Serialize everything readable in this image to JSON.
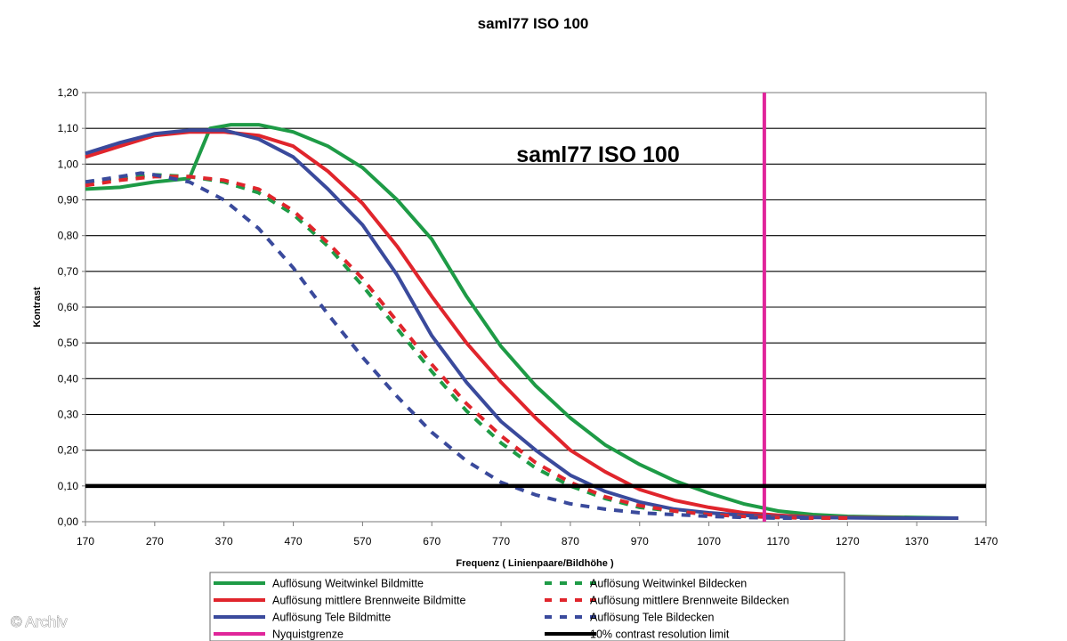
{
  "chart_data": {
    "type": "line",
    "title": "saml77 ISO 100",
    "annotation": "saml77 ISO 100",
    "xlabel": "Frequenz ( Linienpaare/Bildhöhe )",
    "ylabel": "Kontrast",
    "xlim": [
      170,
      1470
    ],
    "ylim": [
      0,
      1.2
    ],
    "x_ticks": [
      "170",
      "270",
      "370",
      "470",
      "570",
      "670",
      "770",
      "870",
      "970",
      "1070",
      "1170",
      "1270",
      "1370",
      "1470"
    ],
    "y_ticks": [
      "0,00",
      "0,10",
      "0,20",
      "0,30",
      "0,40",
      "0,50",
      "0,60",
      "0,70",
      "0,80",
      "0,90",
      "1,00",
      "1,10",
      "1,20"
    ],
    "grid": "horizontal",
    "legend_position": "bottom",
    "series": [
      {
        "name": "Auflösung Weitwinkel Bildmitte",
        "color": "#1e9b46",
        "style": "solid",
        "points": [
          [
            170,
            0.93
          ],
          [
            220,
            0.935
          ],
          [
            270,
            0.95
          ],
          [
            320,
            0.96
          ],
          [
            350,
            1.1
          ],
          [
            380,
            1.11
          ],
          [
            420,
            1.11
          ],
          [
            470,
            1.09
          ],
          [
            520,
            1.05
          ],
          [
            570,
            0.99
          ],
          [
            620,
            0.9
          ],
          [
            670,
            0.79
          ],
          [
            720,
            0.63
          ],
          [
            770,
            0.49
          ],
          [
            820,
            0.38
          ],
          [
            870,
            0.29
          ],
          [
            920,
            0.215
          ],
          [
            970,
            0.16
          ],
          [
            1020,
            0.115
          ],
          [
            1070,
            0.08
          ],
          [
            1120,
            0.05
          ],
          [
            1170,
            0.03
          ],
          [
            1220,
            0.02
          ],
          [
            1270,
            0.015
          ],
          [
            1320,
            0.013
          ],
          [
            1370,
            0.012
          ],
          [
            1430,
            0.01
          ]
        ]
      },
      {
        "name": "Auflösung mittlere Brennweite Bildmitte",
        "color": "#e0252c",
        "style": "solid",
        "points": [
          [
            170,
            1.02
          ],
          [
            220,
            1.05
          ],
          [
            270,
            1.08
          ],
          [
            320,
            1.09
          ],
          [
            370,
            1.09
          ],
          [
            420,
            1.08
          ],
          [
            470,
            1.05
          ],
          [
            520,
            0.98
          ],
          [
            570,
            0.89
          ],
          [
            620,
            0.77
          ],
          [
            670,
            0.63
          ],
          [
            720,
            0.5
          ],
          [
            770,
            0.39
          ],
          [
            820,
            0.29
          ],
          [
            870,
            0.2
          ],
          [
            920,
            0.14
          ],
          [
            970,
            0.09
          ],
          [
            1020,
            0.06
          ],
          [
            1070,
            0.04
          ],
          [
            1120,
            0.025
          ],
          [
            1170,
            0.018
          ],
          [
            1220,
            0.013
          ],
          [
            1270,
            0.012
          ],
          [
            1320,
            0.011
          ],
          [
            1370,
            0.01
          ],
          [
            1430,
            0.01
          ]
        ]
      },
      {
        "name": "Auflösung Tele Bildmitte",
        "color": "#3a4a9c",
        "style": "solid",
        "points": [
          [
            170,
            1.03
          ],
          [
            220,
            1.06
          ],
          [
            270,
            1.085
          ],
          [
            320,
            1.095
          ],
          [
            370,
            1.095
          ],
          [
            420,
            1.07
          ],
          [
            470,
            1.02
          ],
          [
            520,
            0.93
          ],
          [
            570,
            0.83
          ],
          [
            620,
            0.69
          ],
          [
            670,
            0.52
          ],
          [
            720,
            0.39
          ],
          [
            770,
            0.28
          ],
          [
            820,
            0.2
          ],
          [
            870,
            0.13
          ],
          [
            920,
            0.085
          ],
          [
            970,
            0.055
          ],
          [
            1020,
            0.035
          ],
          [
            1070,
            0.025
          ],
          [
            1120,
            0.018
          ],
          [
            1170,
            0.014
          ],
          [
            1220,
            0.012
          ],
          [
            1270,
            0.011
          ],
          [
            1320,
            0.01
          ],
          [
            1370,
            0.01
          ],
          [
            1430,
            0.01
          ]
        ]
      },
      {
        "name": "Auflösung Weitwinkel Bildecken",
        "color": "#1e9b46",
        "style": "dashed",
        "points": [
          [
            170,
            0.95
          ],
          [
            220,
            0.96
          ],
          [
            270,
            0.97
          ],
          [
            320,
            0.965
          ],
          [
            370,
            0.95
          ],
          [
            420,
            0.92
          ],
          [
            470,
            0.86
          ],
          [
            520,
            0.77
          ],
          [
            570,
            0.66
          ],
          [
            620,
            0.54
          ],
          [
            670,
            0.42
          ],
          [
            720,
            0.31
          ],
          [
            770,
            0.22
          ],
          [
            820,
            0.15
          ],
          [
            870,
            0.1
          ],
          [
            920,
            0.065
          ],
          [
            970,
            0.04
          ],
          [
            1020,
            0.03
          ],
          [
            1070,
            0.02
          ],
          [
            1120,
            0.015
          ],
          [
            1170,
            0.012
          ],
          [
            1220,
            0.01
          ],
          [
            1270,
            0.01
          ]
        ]
      },
      {
        "name": "Auflösung mittlere Brennweite Bildecken",
        "color": "#e0252c",
        "style": "dashed",
        "points": [
          [
            170,
            0.94
          ],
          [
            220,
            0.955
          ],
          [
            270,
            0.965
          ],
          [
            320,
            0.965
          ],
          [
            370,
            0.955
          ],
          [
            420,
            0.93
          ],
          [
            470,
            0.87
          ],
          [
            520,
            0.78
          ],
          [
            570,
            0.68
          ],
          [
            620,
            0.56
          ],
          [
            670,
            0.44
          ],
          [
            720,
            0.33
          ],
          [
            770,
            0.24
          ],
          [
            820,
            0.165
          ],
          [
            870,
            0.11
          ],
          [
            920,
            0.07
          ],
          [
            970,
            0.045
          ],
          [
            1020,
            0.03
          ],
          [
            1070,
            0.02
          ],
          [
            1120,
            0.015
          ],
          [
            1170,
            0.012
          ],
          [
            1220,
            0.01
          ],
          [
            1270,
            0.01
          ]
        ]
      },
      {
        "name": "Auflösung Tele Bildecken",
        "color": "#3a4a9c",
        "style": "dashed",
        "points": [
          [
            170,
            0.95
          ],
          [
            220,
            0.965
          ],
          [
            250,
            0.975
          ],
          [
            270,
            0.97
          ],
          [
            320,
            0.95
          ],
          [
            370,
            0.9
          ],
          [
            420,
            0.82
          ],
          [
            470,
            0.71
          ],
          [
            520,
            0.58
          ],
          [
            570,
            0.46
          ],
          [
            620,
            0.35
          ],
          [
            670,
            0.25
          ],
          [
            720,
            0.17
          ],
          [
            770,
            0.11
          ],
          [
            820,
            0.075
          ],
          [
            870,
            0.05
          ],
          [
            920,
            0.035
          ],
          [
            970,
            0.025
          ],
          [
            1020,
            0.02
          ],
          [
            1070,
            0.015
          ],
          [
            1120,
            0.012
          ],
          [
            1170,
            0.01
          ],
          [
            1220,
            0.01
          ]
        ]
      },
      {
        "name": "Nyquistgrenze",
        "color": "#e0259a",
        "style": "vertical",
        "x": 1150
      },
      {
        "name": "10% contrast resolution limit",
        "color": "#000000",
        "style": "horizontal",
        "y": 0.1
      }
    ]
  },
  "credit": "© Archiv"
}
